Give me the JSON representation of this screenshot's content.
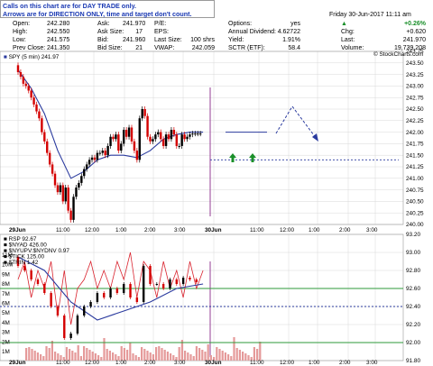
{
  "notice": {
    "line1": "Calls on this chart are for DAY TRADE only.",
    "line2": "Arrows are for DIRECTION ONLY, time and target don't count."
  },
  "quote": {
    "open_label": "Open:",
    "open": "242.280",
    "high_label": "High:",
    "high": "242.550",
    "low_label": "Low:",
    "low": "241.575",
    "prev_label": "Prev Close:",
    "prev": "241.350",
    "ask_label": "Ask:",
    "ask": "241.970",
    "asksize_label": "Ask Size:",
    "asksize": "17",
    "bid_label": "Bid:",
    "bid": "241.960",
    "bidsize_label": "Bid Size:",
    "bidsize": "21",
    "pe_label": "P/E:",
    "pe": "",
    "eps_label": "EPS:",
    "eps": "",
    "lastsize_label": "Last Size:",
    "lastsize": "100 shrs",
    "vwap_label": "VWAP:",
    "vwap": "242.059",
    "options_label": "Options:",
    "options": "yes",
    "div_label": "Annual Dividend:",
    "div": "4.62722",
    "yield_label": "Yield:",
    "yield": "1.91%",
    "sctr_label": "SCTR (ETF):",
    "sctr": "58.4",
    "date": "Friday  30-Jun-2017  11:11 am",
    "pct": "+0.26%",
    "chg_label": "Chg:",
    "chg": "+0.620",
    "last_label": "Last:",
    "last": "241.970",
    "vol_label": "Volume:",
    "vol": "19,739,208",
    "copyright": "© StockCharts.com"
  },
  "colors": {
    "candle": "#000000",
    "down": "#d40000",
    "ma": "#2a3a9e",
    "trend": "#2a3a9e",
    "arrow_green": "#1a8f2a",
    "rsi": "#d9232e",
    "green_line": "#2e9a3a",
    "volume": "#e59a9a",
    "grid": "#d8d8d8",
    "marker": "#8b2a8b"
  },
  "chart_data": [
    {
      "type": "line",
      "legend": "SPY (5 min) 241.97",
      "x_ticks": [
        "29Jun",
        "11:00",
        "12:00",
        "1:00",
        "2:00",
        "3:00",
        "30Jun",
        "11:00",
        "12:00",
        "1:00",
        "2:00",
        "3:00"
      ],
      "ylim": [
        240.0,
        243.75
      ],
      "y_ticks": [
        "240.00",
        "240.25",
        "240.50",
        "240.75",
        "241.00",
        "241.25",
        "241.50",
        "241.75",
        "242.00",
        "242.25",
        "242.50",
        "242.75",
        "243.00",
        "243.25",
        "243.50",
        "243.75"
      ],
      "series": [
        {
          "kind": "price",
          "x": [
            0.0,
            0.1,
            0.2,
            0.3,
            0.4,
            0.5,
            0.6,
            0.7,
            0.8,
            0.9,
            1.0,
            1.1,
            1.2,
            1.3,
            1.4,
            1.5,
            1.6,
            1.7,
            1.8,
            1.9,
            2.0,
            2.1,
            2.2,
            2.3,
            2.4,
            2.5,
            2.6,
            2.7,
            2.8,
            2.9,
            3.0,
            3.1,
            3.2,
            3.3,
            3.4,
            3.5,
            3.6,
            3.7,
            3.8,
            3.9,
            4.0,
            4.1,
            4.2,
            4.3,
            4.4,
            4.5,
            4.6,
            4.7,
            4.8,
            4.9,
            5.0,
            5.1,
            5.2,
            5.3,
            5.4,
            5.5,
            5.6,
            5.7,
            5.8,
            5.9,
            6.0,
            6.1,
            6.2,
            6.3,
            6.4,
            6.5,
            6.6,
            6.7,
            6.8,
            6.9,
            7.0,
            7.1,
            7.2,
            7.3
          ],
          "y": [
            243.45,
            243.3,
            243.2,
            243.05,
            243.0,
            242.9,
            242.75,
            242.6,
            242.45,
            242.3,
            242.0,
            241.8,
            241.55,
            241.3,
            241.1,
            240.85,
            240.7,
            240.85,
            240.5,
            240.8,
            240.3,
            240.1,
            240.6,
            240.8,
            240.9,
            241.05,
            241.2,
            241.3,
            241.4,
            241.45,
            241.4,
            241.55,
            241.55,
            241.6,
            241.5,
            241.7,
            241.9,
            241.85,
            241.95,
            241.6,
            241.75,
            242.05,
            241.9,
            242.1,
            241.8,
            241.6,
            241.4,
            242.3,
            242.5,
            242.35,
            241.9,
            241.8,
            241.85,
            241.95,
            242.0,
            241.85,
            241.7,
            241.95,
            241.85,
            242.05,
            241.95,
            241.7,
            241.7,
            241.95,
            241.85,
            241.9,
            241.95,
            241.97,
            241.97,
            241.97,
            241.97,
            241.97,
            241.97,
            241.97
          ]
        },
        {
          "kind": "moving_average",
          "x": [
            0,
            0.5,
            1,
            1.5,
            2,
            2.5,
            3,
            3.5,
            4,
            4.5,
            5,
            5.5,
            6,
            6.5,
            7
          ],
          "y": [
            243.35,
            242.95,
            242.4,
            241.6,
            241.0,
            241.15,
            241.4,
            241.5,
            241.5,
            241.45,
            241.6,
            241.85,
            241.95,
            242.0,
            242.0
          ]
        }
      ],
      "annotations": {
        "support_level": 241.4,
        "resistance_level": 242.0,
        "projection": "up to ~242.45 then down toward ~241.9"
      }
    },
    {
      "type": "line",
      "legend": [
        "RSP 92.67",
        "$NYAD 426.00",
        "$NYUPV:$NYDNV 0.97",
        "$TICK 125.00",
        "$TRIN 1.42"
      ],
      "x_ticks": [
        "29Jun",
        "11:00",
        "12:00",
        "1:00",
        "2:00",
        "3:00",
        "30Jun",
        "11:00",
        "12:00",
        "1:00",
        "2:00",
        "3:00"
      ],
      "ylim": [
        91.8,
        93.2
      ],
      "y_ticks": [
        "91.80",
        "92.00",
        "92.20",
        "92.40",
        "92.60",
        "92.80",
        "93.00",
        "93.20"
      ],
      "volume_ticks": [
        "1M",
        "2M",
        "3M",
        "4M",
        "5M",
        "6M",
        "7M",
        "8M",
        "9M",
        "10M",
        "11M"
      ],
      "series": [
        {
          "kind": "rsp_price",
          "x": [
            0,
            0.25,
            0.5,
            0.75,
            1,
            1.25,
            1.5,
            1.75,
            2,
            2.25,
            2.5,
            2.75,
            3,
            3.25,
            3.5,
            3.75,
            4,
            4.25,
            4.5,
            4.75,
            5,
            5.25,
            5.5,
            5.75,
            6,
            6.25,
            6.5,
            6.75,
            7
          ],
          "y": [
            92.95,
            92.85,
            92.8,
            92.7,
            92.65,
            92.55,
            92.4,
            92.3,
            92.05,
            92.1,
            92.3,
            92.4,
            92.45,
            92.55,
            92.5,
            92.6,
            92.55,
            92.65,
            92.5,
            92.45,
            92.85,
            92.65,
            92.65,
            92.6,
            92.7,
            92.65,
            92.72,
            92.7,
            92.67
          ]
        },
        {
          "kind": "ma",
          "x": [
            0,
            1,
            2,
            3,
            4,
            5,
            6,
            7
          ],
          "y": [
            92.95,
            92.8,
            92.45,
            92.25,
            92.35,
            92.45,
            92.6,
            92.65
          ]
        },
        {
          "kind": "breadth_red",
          "x": [
            0,
            0.25,
            0.5,
            0.75,
            1,
            1.25,
            1.5,
            1.75,
            2,
            2.25,
            2.5,
            2.75,
            3,
            3.25,
            3.5,
            3.75,
            4,
            4.25,
            4.5,
            4.75,
            5,
            5.25,
            5.5,
            5.75,
            6,
            6.25,
            6.5,
            6.75,
            7
          ],
          "y": [
            92.7,
            92.9,
            92.5,
            92.8,
            92.6,
            92.9,
            92.3,
            92.8,
            92.2,
            92.6,
            92.7,
            92.9,
            92.6,
            92.8,
            92.6,
            92.9,
            92.7,
            93.0,
            92.5,
            92.9,
            92.8,
            92.5,
            92.9,
            92.6,
            92.8,
            92.5,
            92.9,
            92.6,
            92.8
          ]
        }
      ],
      "levels": [
        92.6,
        92.4,
        92.0
      ]
    }
  ]
}
